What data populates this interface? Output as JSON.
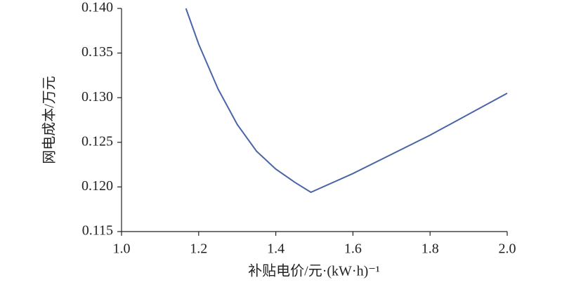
{
  "chart_data": {
    "type": "line",
    "x_label": "补贴电价/元·(kW·h)⁻¹",
    "y_label": "网电成本/万元",
    "x": [
      1.167,
      1.2,
      1.25,
      1.3,
      1.35,
      1.4,
      1.45,
      1.491,
      1.6,
      1.8,
      2.0
    ],
    "series": [
      {
        "color": "#4a64a8",
        "values": [
          0.14,
          0.136,
          0.131,
          0.127,
          0.124,
          0.122,
          0.1205,
          0.1194,
          0.1215,
          0.1258,
          0.1305
        ]
      }
    ],
    "xlim": [
      1.0,
      2.0
    ],
    "xticks": [
      {
        "value": 1.0,
        "label": "1.0"
      },
      1.2,
      1.4,
      1.6,
      1.8,
      {
        "value": 2.0,
        "label": "2.0"
      }
    ],
    "ylim": [
      0.115,
      0.14
    ],
    "yticks": [
      0.115,
      {
        "value": 0.12,
        "label": "0.120"
      },
      0.125,
      {
        "value": 0.13,
        "label": "0.130"
      },
      0.135,
      {
        "value": 0.14,
        "label": "0.140"
      }
    ]
  }
}
